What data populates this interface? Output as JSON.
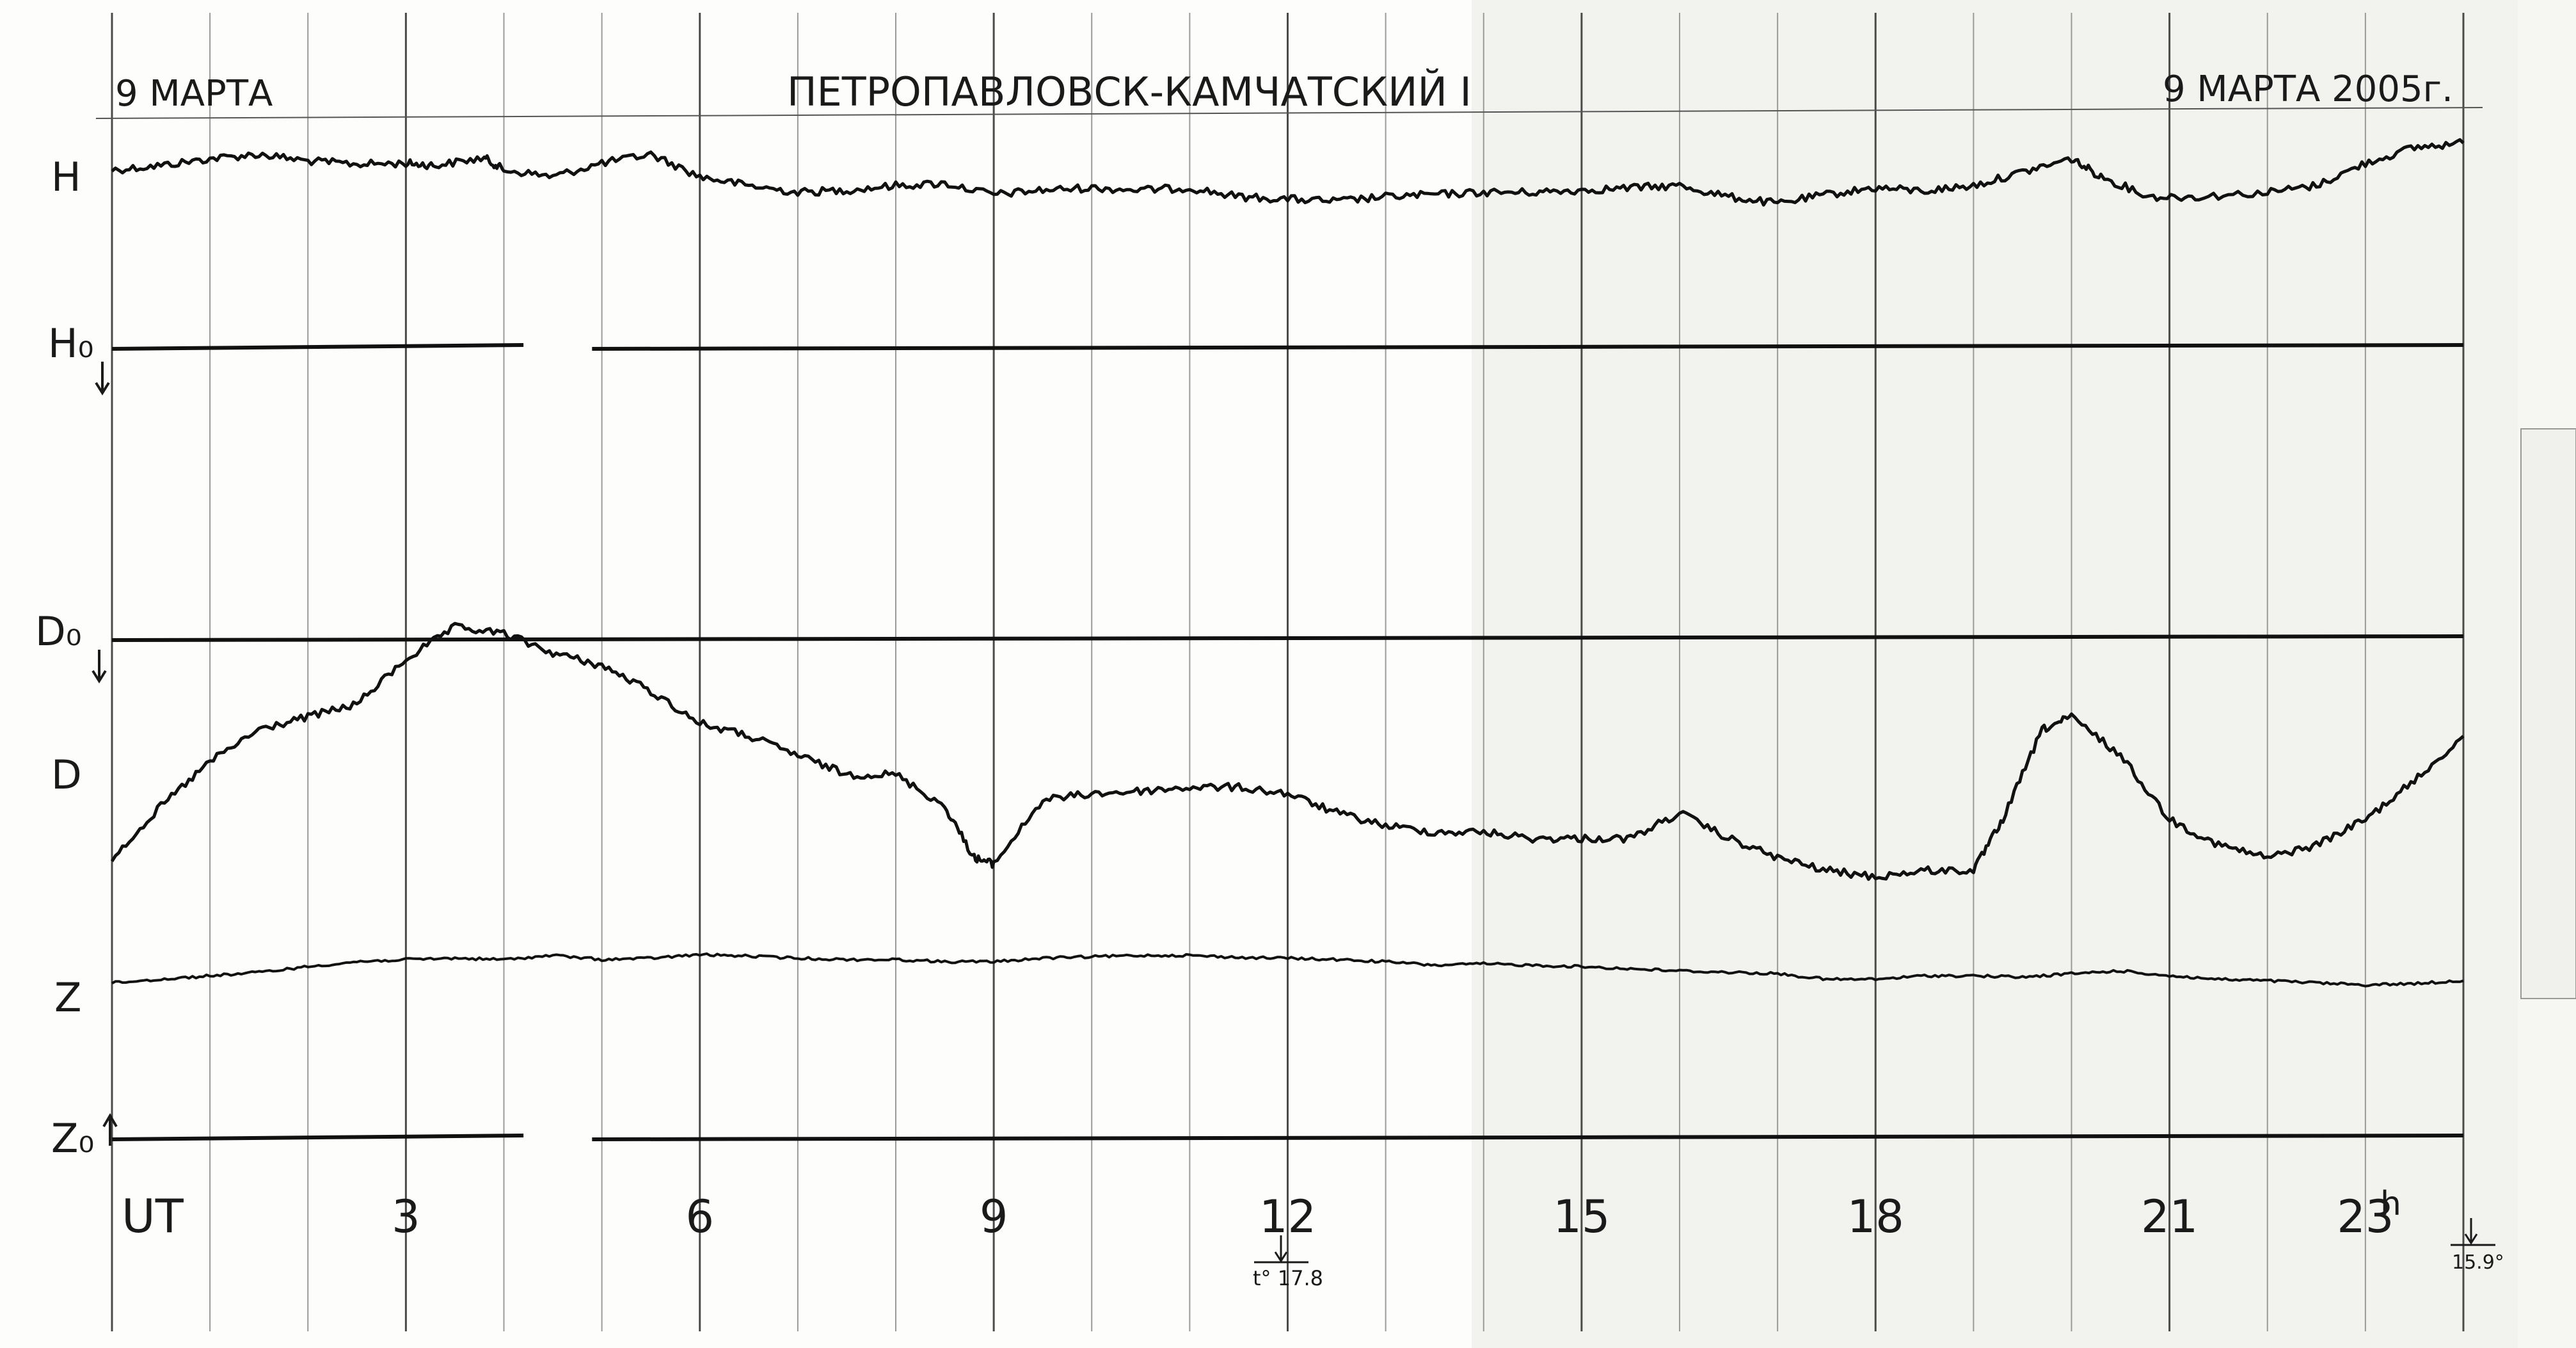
{
  "header": {
    "date_left": "9 МАРТА",
    "station": "ПЕТРОПАВЛОВСК-КАМЧАТСКИЙ I",
    "date_right": "9 МАРТА 2005г."
  },
  "chart_data": {
    "type": "line",
    "title": "ПЕТРОПАВЛОВСК-КАМЧАТСКИЙ I",
    "x_axis_label": "UT",
    "x_unit_label": "h",
    "x_range": [
      0,
      24
    ],
    "x_ticks": [
      {
        "hour": 3,
        "label": "3"
      },
      {
        "hour": 6,
        "label": "6"
      },
      {
        "hour": 9,
        "label": "9"
      },
      {
        "hour": 12,
        "label": "12"
      },
      {
        "hour": 15,
        "label": "15"
      },
      {
        "hour": 18,
        "label": "18"
      },
      {
        "hour": 21,
        "label": "21"
      },
      {
        "hour": 23,
        "label": "23"
      }
    ],
    "grid": true,
    "traces": [
      {
        "name": "H",
        "label": "H",
        "points": [
          [
            0,
            0.35
          ],
          [
            0.5,
            0.45
          ],
          [
            1,
            0.6
          ],
          [
            1.5,
            0.7
          ],
          [
            2,
            0.55
          ],
          [
            2.5,
            0.48
          ],
          [
            3,
            0.5
          ],
          [
            3.3,
            0.45
          ],
          [
            3.8,
            0.62
          ],
          [
            4,
            0.35
          ],
          [
            4.5,
            0.2
          ],
          [
            5,
            0.5
          ],
          [
            5.5,
            0.7
          ],
          [
            6,
            0.2
          ],
          [
            6.5,
            0
          ],
          [
            7,
            -0.15
          ],
          [
            7.5,
            -0.1
          ],
          [
            8,
            0
          ],
          [
            8.5,
            0.05
          ],
          [
            9,
            -0.2
          ],
          [
            9.5,
            -0.1
          ],
          [
            10,
            -0.05
          ],
          [
            10.5,
            -0.1
          ],
          [
            11,
            -0.05
          ],
          [
            11.5,
            -0.25
          ],
          [
            12,
            -0.3
          ],
          [
            12.5,
            -0.35
          ],
          [
            13,
            -0.25
          ],
          [
            13.5,
            -0.2
          ],
          [
            14,
            -0.15
          ],
          [
            14.5,
            -0.15
          ],
          [
            15,
            -0.1
          ],
          [
            15.5,
            -0.05
          ],
          [
            16,
            0
          ],
          [
            16.5,
            -0.25
          ],
          [
            17,
            -0.4
          ],
          [
            17.5,
            -0.2
          ],
          [
            18,
            -0.05
          ],
          [
            18.5,
            -0.12
          ],
          [
            19,
            0
          ],
          [
            19.5,
            0.3
          ],
          [
            20,
            0.6
          ],
          [
            20.3,
            0.2
          ],
          [
            20.8,
            -0.25
          ],
          [
            21.3,
            -0.25
          ],
          [
            22,
            -0.15
          ],
          [
            22.5,
            0
          ],
          [
            23,
            0.5
          ],
          [
            23.5,
            0.85
          ],
          [
            24,
            0.95
          ]
        ]
      },
      {
        "name": "D",
        "label": "D",
        "points": [
          [
            0,
            -1.0
          ],
          [
            0.5,
            -0.6
          ],
          [
            1,
            -0.25
          ],
          [
            1.5,
            0.0
          ],
          [
            2,
            0.1
          ],
          [
            2.5,
            0.2
          ],
          [
            3,
            0.55
          ],
          [
            3.5,
            0.8
          ],
          [
            4,
            0.75
          ],
          [
            4.5,
            0.6
          ],
          [
            5,
            0.5
          ],
          [
            5.5,
            0.3
          ],
          [
            6,
            0.05
          ],
          [
            6.5,
            -0.05
          ],
          [
            7,
            -0.2
          ],
          [
            7.5,
            -0.35
          ],
          [
            8,
            -0.35
          ],
          [
            8.5,
            -0.6
          ],
          [
            8.8,
            -1.0
          ],
          [
            9,
            -1.05
          ],
          [
            9.5,
            -0.55
          ],
          [
            10,
            -0.5
          ],
          [
            10.5,
            -0.48
          ],
          [
            11,
            -0.45
          ],
          [
            11.5,
            -0.45
          ],
          [
            12,
            -0.5
          ],
          [
            12.5,
            -0.65
          ],
          [
            13,
            -0.75
          ],
          [
            13.5,
            -0.8
          ],
          [
            14,
            -0.8
          ],
          [
            14.5,
            -0.85
          ],
          [
            15,
            -0.85
          ],
          [
            15.5,
            -0.85
          ],
          [
            16,
            -0.65
          ],
          [
            16.5,
            -0.85
          ],
          [
            17,
            -1.0
          ],
          [
            17.5,
            -1.1
          ],
          [
            18,
            -1.15
          ],
          [
            18.5,
            -1.1
          ],
          [
            19,
            -1.1
          ],
          [
            19.3,
            -0.7
          ],
          [
            19.7,
            0.0
          ],
          [
            20,
            0.1
          ],
          [
            20.5,
            -0.2
          ],
          [
            21,
            -0.7
          ],
          [
            21.5,
            -0.9
          ],
          [
            22,
            -1.0
          ],
          [
            22.5,
            -0.9
          ],
          [
            23,
            -0.7
          ],
          [
            23.5,
            -0.4
          ],
          [
            24,
            -0.05
          ]
        ]
      },
      {
        "name": "Z",
        "label": "Z",
        "points": [
          [
            0,
            -0.05
          ],
          [
            0.5,
            0.0
          ],
          [
            1,
            0.05
          ],
          [
            1.5,
            0.1
          ],
          [
            2,
            0.18
          ],
          [
            2.5,
            0.25
          ],
          [
            3,
            0.28
          ],
          [
            3.5,
            0.3
          ],
          [
            4,
            0.28
          ],
          [
            4.5,
            0.34
          ],
          [
            5,
            0.28
          ],
          [
            5.5,
            0.3
          ],
          [
            6,
            0.35
          ],
          [
            6.5,
            0.33
          ],
          [
            7,
            0.3
          ],
          [
            7.5,
            0.28
          ],
          [
            8,
            0.28
          ],
          [
            8.5,
            0.25
          ],
          [
            9,
            0.25
          ],
          [
            9.5,
            0.3
          ],
          [
            10,
            0.32
          ],
          [
            10.5,
            0.34
          ],
          [
            11,
            0.34
          ],
          [
            11.5,
            0.31
          ],
          [
            12,
            0.3
          ],
          [
            12.5,
            0.28
          ],
          [
            13,
            0.25
          ],
          [
            13.5,
            0.2
          ],
          [
            14,
            0.22
          ],
          [
            14.5,
            0.2
          ],
          [
            15,
            0.18
          ],
          [
            15.5,
            0.15
          ],
          [
            16,
            0.12
          ],
          [
            16.5,
            0.1
          ],
          [
            17,
            0.08
          ],
          [
            17.5,
            0.0
          ],
          [
            18,
            0.0
          ],
          [
            18.5,
            0.05
          ],
          [
            19,
            0.05
          ],
          [
            19.5,
            0.03
          ],
          [
            20,
            0.08
          ],
          [
            20.5,
            0.12
          ],
          [
            21,
            0.05
          ],
          [
            21.5,
            0.0
          ],
          [
            22,
            -0.02
          ],
          [
            22.5,
            -0.05
          ],
          [
            23,
            -0.08
          ],
          [
            23.5,
            -0.06
          ],
          [
            24,
            -0.02
          ]
        ]
      }
    ],
    "baselines": [
      {
        "name": "H0",
        "label": "H₀",
        "arrow": "down",
        "gap_hours": [
          4.2,
          4.9
        ]
      },
      {
        "name": "D0",
        "label": "D₀",
        "arrow": "down",
        "gap_hours": [
          4.2,
          4.2
        ]
      },
      {
        "name": "Z0",
        "label": "Z₀",
        "arrow": "up",
        "gap_hours": [
          4.2,
          4.9
        ]
      }
    ],
    "annotations": [
      {
        "hour": 12,
        "text": "t° 17.8"
      },
      {
        "hour": 24,
        "text": "15.9°"
      }
    ]
  }
}
